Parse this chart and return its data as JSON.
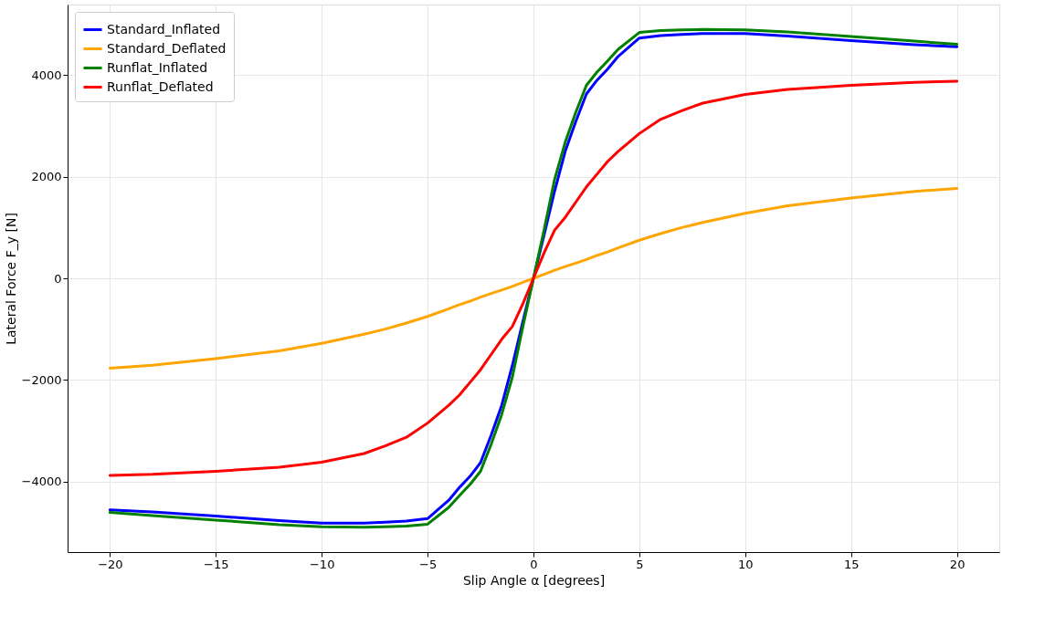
{
  "chart_data": {
    "type": "line",
    "xlabel": "Slip Angle α [degrees]",
    "ylabel": "Lateral Force F_y [N]",
    "x": [
      -20,
      -18,
      -15,
      -12,
      -10,
      -8,
      -7,
      -6,
      -5,
      -4,
      -3.5,
      -3,
      -2.5,
      -2,
      -1.5,
      -1,
      -0.5,
      0,
      0.5,
      1,
      1.5,
      2,
      2.5,
      3,
      3.5,
      4,
      5,
      6,
      7,
      8,
      10,
      12,
      15,
      18,
      20
    ],
    "series": [
      {
        "name": "Standard_Inflated",
        "color": "#0000ff",
        "values": [
          -4560,
          -4600,
          -4680,
          -4770,
          -4820,
          -4820,
          -4800,
          -4780,
          -4730,
          -4370,
          -4120,
          -3900,
          -3630,
          -3090,
          -2500,
          -1720,
          -850,
          0,
          850,
          1720,
          2500,
          3090,
          3630,
          3900,
          4120,
          4370,
          4730,
          4780,
          4800,
          4820,
          4820,
          4770,
          4680,
          4600,
          4560
        ]
      },
      {
        "name": "Standard_Deflated",
        "color": "#ffa500",
        "values": [
          -1770,
          -1710,
          -1580,
          -1430,
          -1280,
          -1100,
          -1000,
          -880,
          -750,
          -600,
          -520,
          -450,
          -370,
          -300,
          -230,
          -160,
          -80,
          0,
          80,
          160,
          230,
          300,
          370,
          450,
          520,
          600,
          750,
          880,
          1000,
          1100,
          1280,
          1430,
          1580,
          1710,
          1770
        ]
      },
      {
        "name": "Runflat_Inflated",
        "color": "#008000",
        "values": [
          -4610,
          -4670,
          -4760,
          -4850,
          -4890,
          -4900,
          -4890,
          -4880,
          -4840,
          -4510,
          -4280,
          -4060,
          -3800,
          -3270,
          -2680,
          -1950,
          -950,
          0,
          950,
          1950,
          2680,
          3270,
          3800,
          4060,
          4280,
          4510,
          4840,
          4880,
          4890,
          4900,
          4890,
          4850,
          4760,
          4670,
          4610
        ]
      },
      {
        "name": "Runflat_Deflated",
        "color": "#ff0000",
        "values": [
          -3880,
          -3860,
          -3800,
          -3720,
          -3620,
          -3450,
          -3300,
          -3130,
          -2850,
          -2500,
          -2300,
          -2050,
          -1800,
          -1500,
          -1200,
          -950,
          -500,
          0,
          500,
          950,
          1200,
          1500,
          1800,
          2050,
          2300,
          2500,
          2850,
          3130,
          3300,
          3450,
          3620,
          3720,
          3800,
          3860,
          3880
        ]
      }
    ],
    "xlim": [
      -22,
      22
    ],
    "xticks": [
      -20,
      -15,
      -10,
      -5,
      0,
      5,
      10,
      15,
      20
    ],
    "ylim": [
      -5390,
      5390
    ],
    "yticks": [
      -4000,
      -2000,
      0,
      2000,
      4000
    ],
    "grid": true,
    "legend": "top left",
    "line_style": "solid",
    "marker": "none"
  }
}
